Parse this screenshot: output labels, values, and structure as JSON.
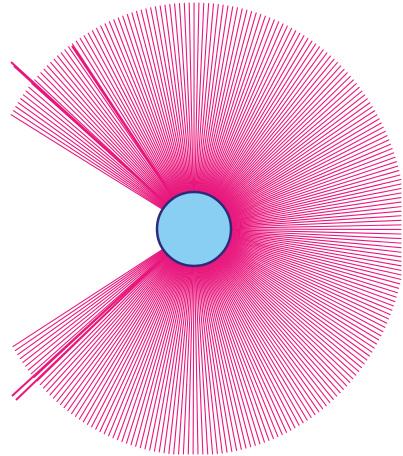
{
  "figure": {
    "description_free": true,
    "ray_color": "#E8177C",
    "hub_fill": "#89CFF3",
    "hub_stroke": "#2E2A7A",
    "background": "#FFFFFF",
    "ray_count": 240,
    "gap_start_deg": 148,
    "gap_end_deg": 213,
    "radius_deg_tolerance": 0
  }
}
